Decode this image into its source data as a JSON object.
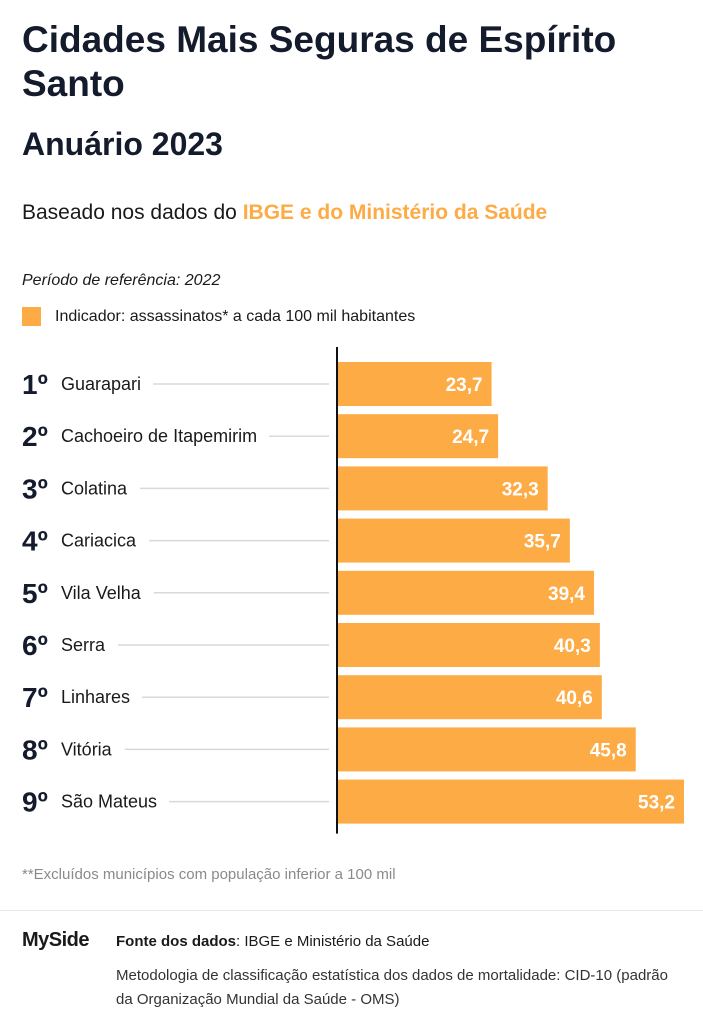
{
  "header": {
    "title": "Cidades Mais Seguras de Espírito Santo",
    "subtitle": "Anuário 2023",
    "based_prefix": "Baseado nos dados do ",
    "based_highlight": "IBGE e do Ministério da Saúde",
    "period": "Período de referência: 2022",
    "legend_label": "Indicador: assassinatos* a cada 100 mil habitantes"
  },
  "colors": {
    "bar": "#fdab45",
    "rank": "#141b2d",
    "axis": "#111111",
    "leader": "#d9d9d9"
  },
  "chart_data": {
    "type": "bar",
    "orientation": "horizontal",
    "title": "Cidades Mais Seguras de Espírito Santo",
    "subtitle": "Anuário 2023",
    "legend": [
      "Indicador: assassinatos* a cada 100 mil habitantes"
    ],
    "ranks": [
      "1º",
      "2º",
      "3º",
      "4º",
      "5º",
      "6º",
      "7º",
      "8º",
      "9º"
    ],
    "categories": [
      "Guarapari",
      "Cachoeiro de Itapemirim",
      "Colatina",
      "Cariacica",
      "Vila Velha",
      "Serra",
      "Linhares",
      "Vitória",
      "São Mateus"
    ],
    "values": [
      23.7,
      24.7,
      32.3,
      35.7,
      39.4,
      40.3,
      40.6,
      45.8,
      53.2
    ],
    "value_labels": [
      "23,7",
      "24,7",
      "32,3",
      "35,7",
      "39,4",
      "40,3",
      "40,6",
      "45,8",
      "53,2"
    ],
    "xlim": [
      0,
      53.2
    ],
    "grid": false
  },
  "footer": {
    "footnote": "**Excluídos municípios com população inferior a 100 mil",
    "logo": "MySide",
    "source_label": "Fonte dos dados",
    "source_value": ": IBGE e Ministério da Saúde",
    "methodology": "Metodologia de classificação estatística dos dados de mortalidade: CID-10 (padrão da Organização Mundial da Saúde - OMS)"
  }
}
